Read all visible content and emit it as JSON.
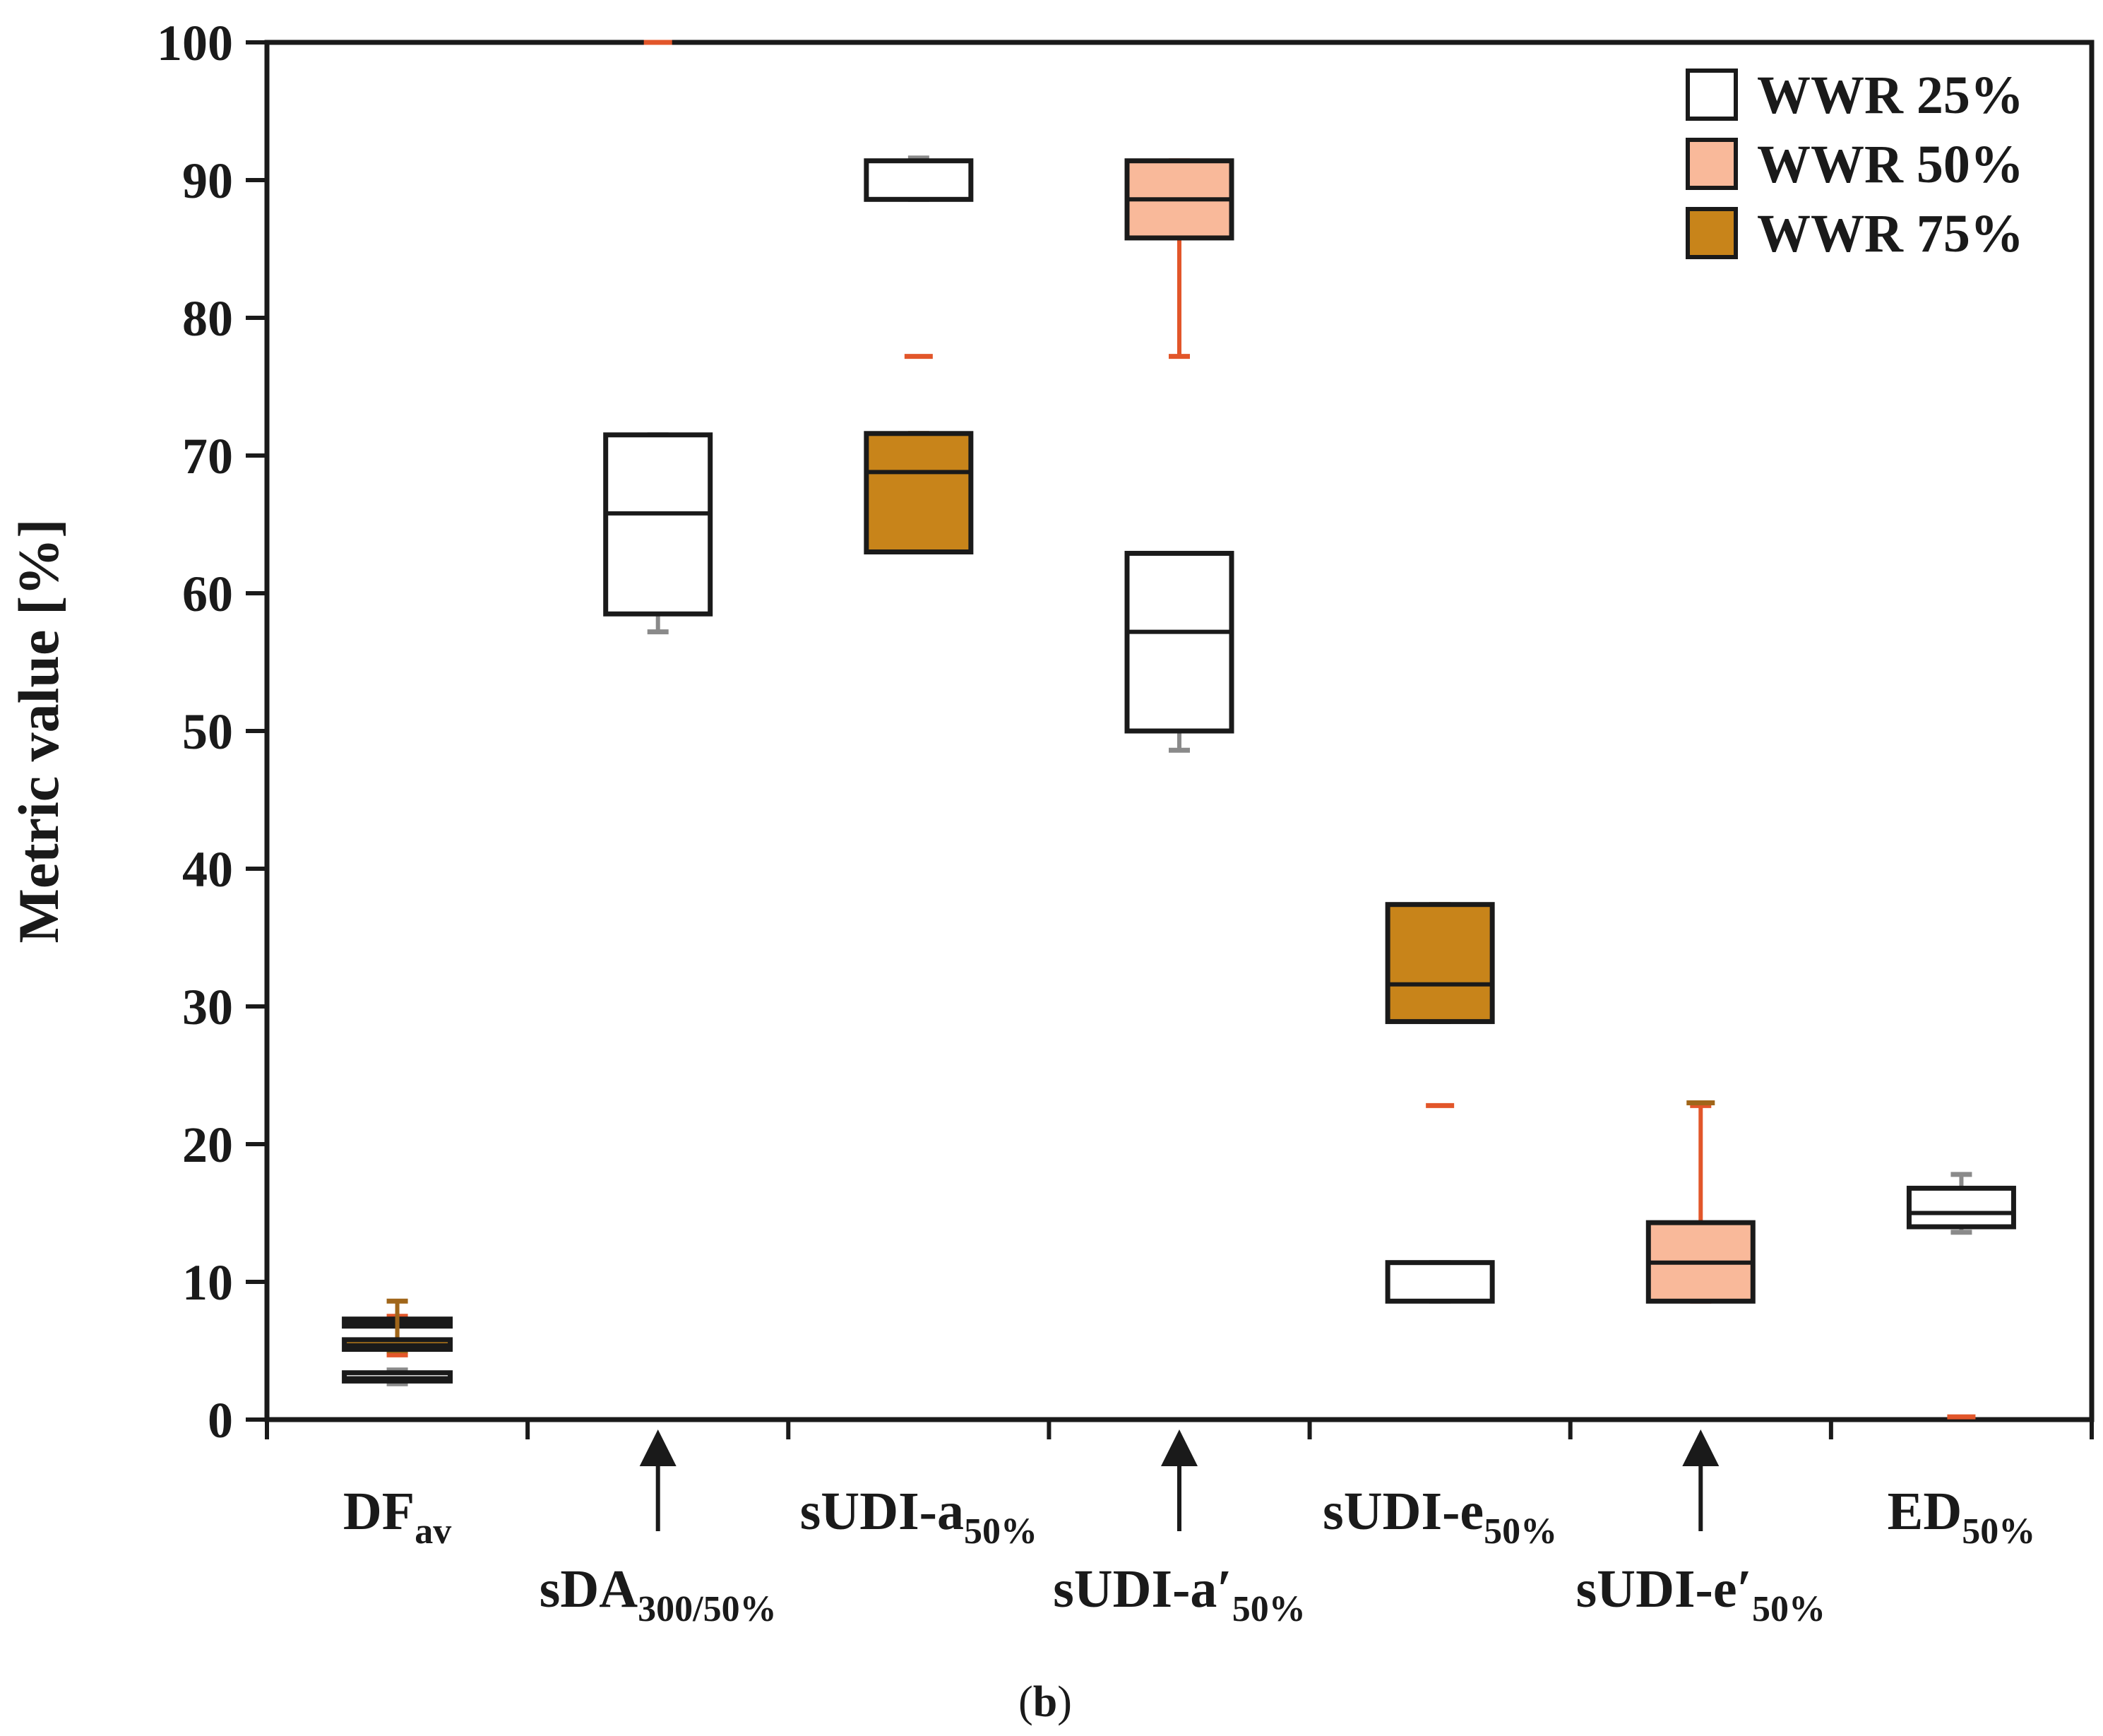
{
  "chart_data": {
    "type": "box",
    "title": "",
    "xlabel": "",
    "ylabel": "Metric value [%]",
    "ylim": [
      0,
      100
    ],
    "yticks": [
      "0",
      "10",
      "20",
      "30",
      "40",
      "50",
      "60",
      "70",
      "80",
      "90",
      "100"
    ],
    "caption": {
      "open": "(",
      "letter": "b",
      "close": ")"
    },
    "categories": [
      {
        "main": "DF",
        "sub": "av",
        "row": "top",
        "arrow": false
      },
      {
        "main": "sDA",
        "sub": "300/50%",
        "row": "bottom",
        "arrow": true
      },
      {
        "main": "sUDI-a",
        "sub": "50%",
        "row": "top",
        "arrow": false
      },
      {
        "main": "sUDI-a′",
        "sub": "50%",
        "row": "bottom",
        "arrow": true
      },
      {
        "main": "sUDI-e",
        "sub": "50%",
        "row": "top",
        "arrow": false
      },
      {
        "main": "sUDI-e′",
        "sub": "50%",
        "row": "bottom",
        "arrow": true
      },
      {
        "main": "ED",
        "sub": "50%",
        "row": "top",
        "arrow": false
      }
    ],
    "legend_position": "top-right",
    "series": [
      {
        "name": "WWR 25%",
        "fill": "#ffffff",
        "whisker_color": "#8a8a8a",
        "boxes": [
          {
            "cat": 0,
            "q1": 2.8,
            "median": 3.0,
            "q3": 3.4,
            "min": 2.6,
            "max": 3.6
          },
          {
            "cat": 1,
            "q1": 58.5,
            "median": 65.8,
            "q3": 71.5,
            "min": 57.2,
            "max": 71.5
          },
          {
            "cat": 2,
            "q1": 88.6,
            "median": 88.6,
            "q3": 91.4,
            "min": 88.6,
            "max": 91.6
          },
          {
            "cat": 3,
            "q1": 50.0,
            "median": 57.2,
            "q3": 62.9,
            "min": 48.6,
            "max": 62.9
          },
          {
            "cat": 4,
            "q1": 8.6,
            "median": 8.6,
            "q3": 11.4,
            "min": 8.6,
            "max": 11.4
          },
          {
            "cat": 6,
            "q1": 14.0,
            "median": 15.0,
            "q3": 16.8,
            "min": 13.6,
            "max": 17.8
          }
        ]
      },
      {
        "name": "WWR 50%",
        "fill": "#f9b99a",
        "whisker_color": "#e2562a",
        "boxes": [
          {
            "cat": 0,
            "q1": 6.8,
            "median": 7.0,
            "q3": 7.3,
            "min": 4.7,
            "max": 7.5
          },
          {
            "cat": 1,
            "q1": 100,
            "median": 100,
            "q3": 100,
            "min": 100,
            "max": 100
          },
          {
            "cat": 2,
            "q1": 77.2,
            "median": 77.2,
            "q3": 77.2,
            "min": 77.2,
            "max": 77.2
          },
          {
            "cat": 3,
            "q1": 85.8,
            "median": 88.6,
            "q3": 91.4,
            "min": 77.2,
            "max": 91.4
          },
          {
            "cat": 4,
            "q1": 22.8,
            "median": 22.8,
            "q3": 22.8,
            "min": 22.8,
            "max": 22.8
          },
          {
            "cat": 5,
            "q1": 8.6,
            "median": 11.4,
            "q3": 14.3,
            "min": 8.6,
            "max": 22.8
          },
          {
            "cat": 6,
            "q1": 0.2,
            "median": 0.2,
            "q3": 0.2,
            "min": 0.2,
            "max": 0.2
          }
        ]
      },
      {
        "name": "WWR 75%",
        "fill": "#c8841a",
        "whisker_color": "#a0661a",
        "boxes": [
          {
            "cat": 0,
            "q1": 5.1,
            "median": 5.4,
            "q3": 5.8,
            "min": 5.0,
            "max": 8.6
          },
          {
            "cat": 2,
            "q1": 63.0,
            "median": 68.8,
            "q3": 71.6,
            "min": 63.0,
            "max": 71.6
          },
          {
            "cat": 4,
            "q1": 28.9,
            "median": 31.6,
            "q3": 37.4,
            "min": 28.9,
            "max": 37.4
          },
          {
            "cat": 5,
            "q1": 23.0,
            "median": 23.0,
            "q3": 23.0,
            "min": 23.0,
            "max": 23.0
          }
        ]
      }
    ]
  }
}
